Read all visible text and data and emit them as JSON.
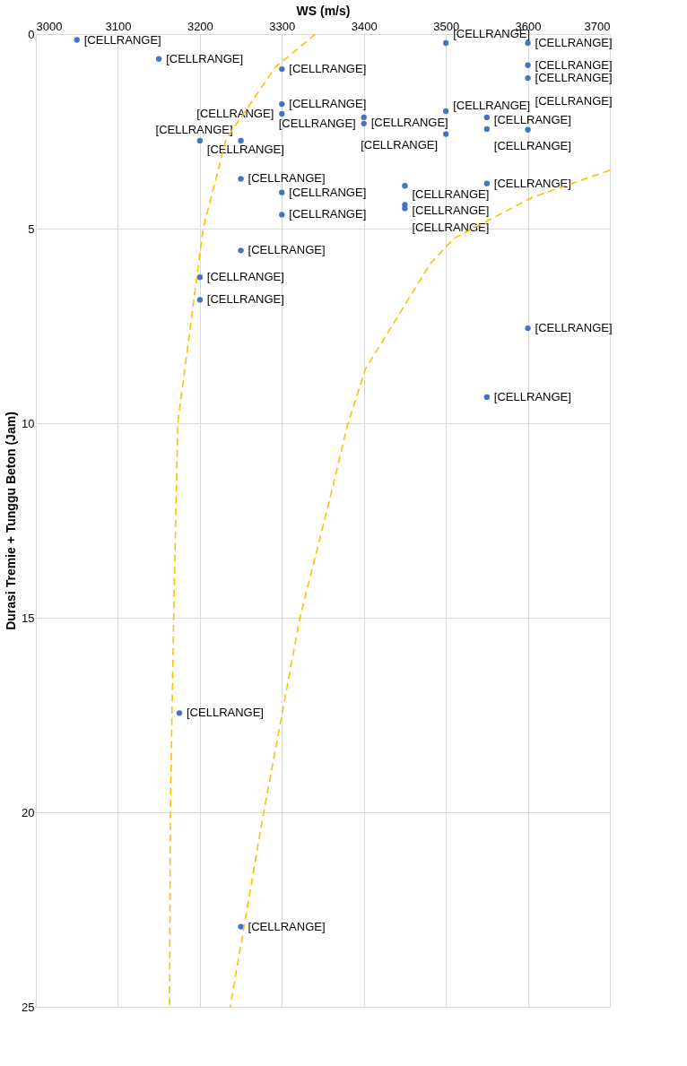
{
  "chart_data": {
    "type": "scatter",
    "xlabel": "WS (m/s)",
    "ylabel": "Durasi Tremie + Tunggu Beton (Jam)",
    "xlim": [
      3000,
      3700
    ],
    "xticks": [
      3000,
      3100,
      3200,
      3300,
      3400,
      3500,
      3600,
      3700
    ],
    "ylim": [
      25,
      0
    ],
    "yticks": [
      0,
      5,
      10,
      15,
      20,
      25
    ],
    "grid": true,
    "marker": "circle",
    "series": [
      {
        "color": "#4472c4",
        "x": [
          3050,
          3150,
          3300,
          3500,
          3600,
          3600,
          3600,
          3300,
          3300,
          3400,
          3400,
          3500,
          3550,
          3550,
          3600,
          3500,
          3200,
          3250,
          3250,
          3300,
          3300,
          3450,
          3450,
          3450,
          3550,
          3250,
          3200,
          3200,
          3600,
          3550,
          3175,
          3250
        ],
        "values": [
          0.15,
          0.64,
          0.9,
          0.23,
          0.23,
          0.8,
          1.13,
          1.8,
          2.05,
          2.14,
          2.3,
          1.98,
          2.14,
          2.44,
          2.46,
          2.57,
          2.74,
          2.74,
          3.72,
          4.07,
          4.64,
          3.9,
          4.39,
          4.48,
          3.84,
          5.56,
          6.25,
          6.83,
          7.56,
          9.33,
          17.45,
          22.94
        ],
        "value_labels": [
          "[CELLRANGE]",
          "[CELLRANGE]",
          "[CELLRANGE]",
          "[CELLRANGE]",
          "[CELLRANGE]",
          "[CELLRANGE]",
          "[CELLRANGE]",
          "[CELLRANGE]",
          "[CELLRANGE]",
          "[CELLRANGE]",
          "[CELLRANGE]",
          "[CELLRANGE]",
          "[CELLRANGE]",
          "[CELLRANGE]",
          "[CELLRANGE]",
          "[CELLRANGE]",
          "[CELLRANGE]",
          "[CELLRANGE]",
          "[CELLRANGE]",
          "[CELLRANGE]",
          "[CELLRANGE]",
          "[CELLRANGE]",
          "[CELLRANGE]",
          "[CELLRANGE]",
          "[CELLRANGE]",
          "[CELLRANGE]",
          "[CELLRANGE]",
          "[CELLRANGE]",
          "[CELLRANGE]",
          "[CELLRANGE]",
          "[CELLRANGE]",
          "[CELLRANGE]"
        ]
      },
      {
        "type": "line",
        "color": "#ffc000",
        "line_style": "dashed",
        "marker": "none",
        "x": [
          3341,
          3292,
          3232,
          3204,
          3173,
          3168,
          3164,
          3163
        ],
        "values": [
          0,
          0.85,
          2.7,
          5,
          10,
          15,
          20,
          25
        ]
      },
      {
        "type": "line",
        "color": "#ffc000",
        "line_style": "dashed",
        "marker": "none",
        "x": [
          3700,
          3605,
          3510,
          3481,
          3402,
          3380,
          3359,
          3322,
          3300,
          3277,
          3237
        ],
        "values": [
          3.5,
          4.2,
          5.25,
          5.9,
          8.6,
          10.05,
          11.9,
          15,
          17.5,
          20.1,
          25
        ]
      }
    ]
  }
}
